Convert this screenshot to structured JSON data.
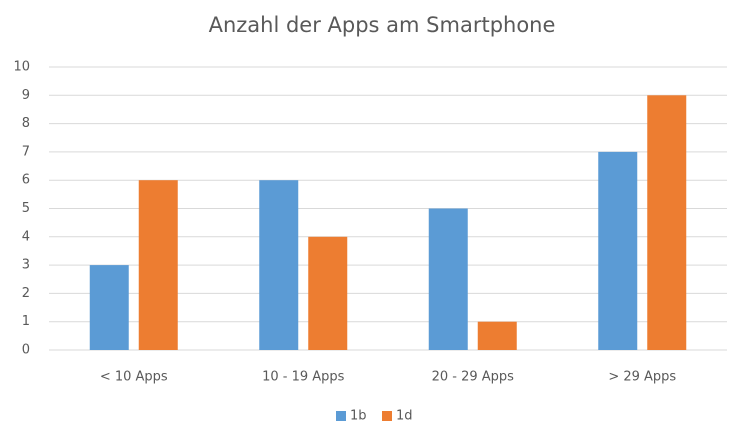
{
  "chart_data": {
    "type": "bar",
    "title": "Anzahl der Apps am Smartphone",
    "categories": [
      "< 10 Apps",
      "10 - 19 Apps",
      "20 - 29 Apps",
      "> 29 Apps"
    ],
    "series": [
      {
        "name": "1b",
        "color": "#5b9bd5",
        "values": [
          3,
          6,
          5,
          7
        ]
      },
      {
        "name": "1d",
        "color": "#ed7d31",
        "values": [
          6,
          4,
          1,
          9
        ]
      }
    ],
    "ylim": [
      0,
      10
    ],
    "yticks": [
      0,
      1,
      2,
      3,
      4,
      5,
      6,
      7,
      8,
      9,
      10
    ],
    "grid": true,
    "legend": "bottom"
  }
}
